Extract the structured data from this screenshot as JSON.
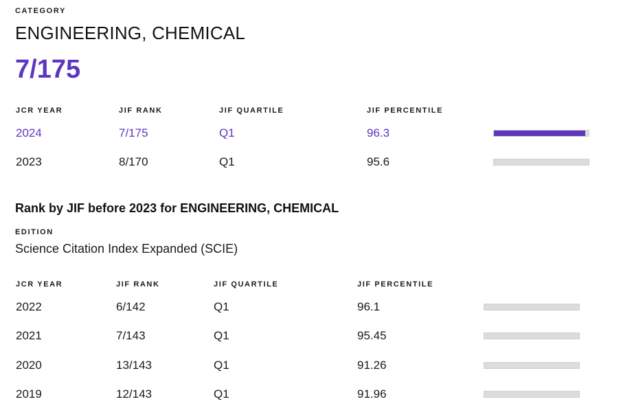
{
  "category": {
    "label": "CATEGORY",
    "name": "ENGINEERING, CHEMICAL",
    "rank": "7/175"
  },
  "current_table": {
    "headers": {
      "year": "JCR YEAR",
      "rank": "JIF RANK",
      "quartile": "JIF QUARTILE",
      "percentile": "JIF PERCENTILE"
    },
    "rows": [
      {
        "year": "2024",
        "rank": "7/175",
        "quartile": "Q1",
        "percentile": "96.3",
        "percentile_value": 96.3,
        "highlight": true
      },
      {
        "year": "2023",
        "rank": "8/170",
        "quartile": "Q1",
        "percentile": "95.6",
        "percentile_value": 95.6,
        "highlight": false
      }
    ]
  },
  "before_section": {
    "title": "Rank by JIF before 2023 for ENGINEERING, CHEMICAL",
    "edition_label": "EDITION",
    "edition_value": "Science Citation Index Expanded (SCIE)",
    "headers": {
      "year": "JCR YEAR",
      "rank": "JIF RANK",
      "quartile": "JIF QUARTILE",
      "percentile": "JIF PERCENTILE"
    },
    "rows": [
      {
        "year": "2022",
        "rank": "6/142",
        "quartile": "Q1",
        "percentile": "96.1",
        "percentile_value": 96.1
      },
      {
        "year": "2021",
        "rank": "7/143",
        "quartile": "Q1",
        "percentile": "95.45",
        "percentile_value": 95.45
      },
      {
        "year": "2020",
        "rank": "13/143",
        "quartile": "Q1",
        "percentile": "91.26",
        "percentile_value": 91.26
      },
      {
        "year": "2019",
        "rank": "12/143",
        "quartile": "Q1",
        "percentile": "91.96",
        "percentile_value": 91.96
      }
    ]
  },
  "colors": {
    "accent": "#5f36bf",
    "bar_track": "#dcdcdc",
    "text": "#1a1a1a"
  }
}
